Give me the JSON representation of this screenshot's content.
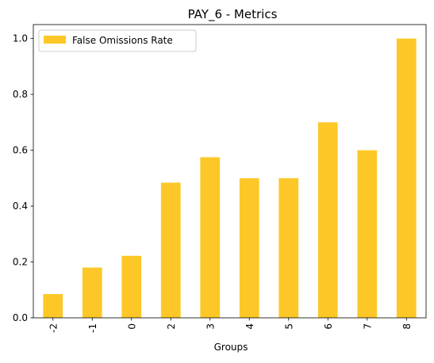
{
  "chart_data": {
    "type": "bar",
    "title": "PAY_6 - Metrics",
    "xlabel": "Groups",
    "ylabel": "",
    "categories": [
      "-2",
      "-1",
      "0",
      "2",
      "3",
      "4",
      "5",
      "6",
      "7",
      "8"
    ],
    "series": [
      {
        "name": "False Omissions Rate",
        "values": [
          0.085,
          0.18,
          0.222,
          0.484,
          0.575,
          0.5,
          0.5,
          0.7,
          0.6,
          1.0
        ],
        "color": "#fdc827"
      }
    ],
    "ylim": [
      0,
      1.05
    ],
    "yticks": [
      "0.0",
      "0.2",
      "0.4",
      "0.6",
      "0.8",
      "1.0"
    ],
    "grid": false,
    "legend_position": "top-left",
    "xtick_rotation": "vertical"
  }
}
